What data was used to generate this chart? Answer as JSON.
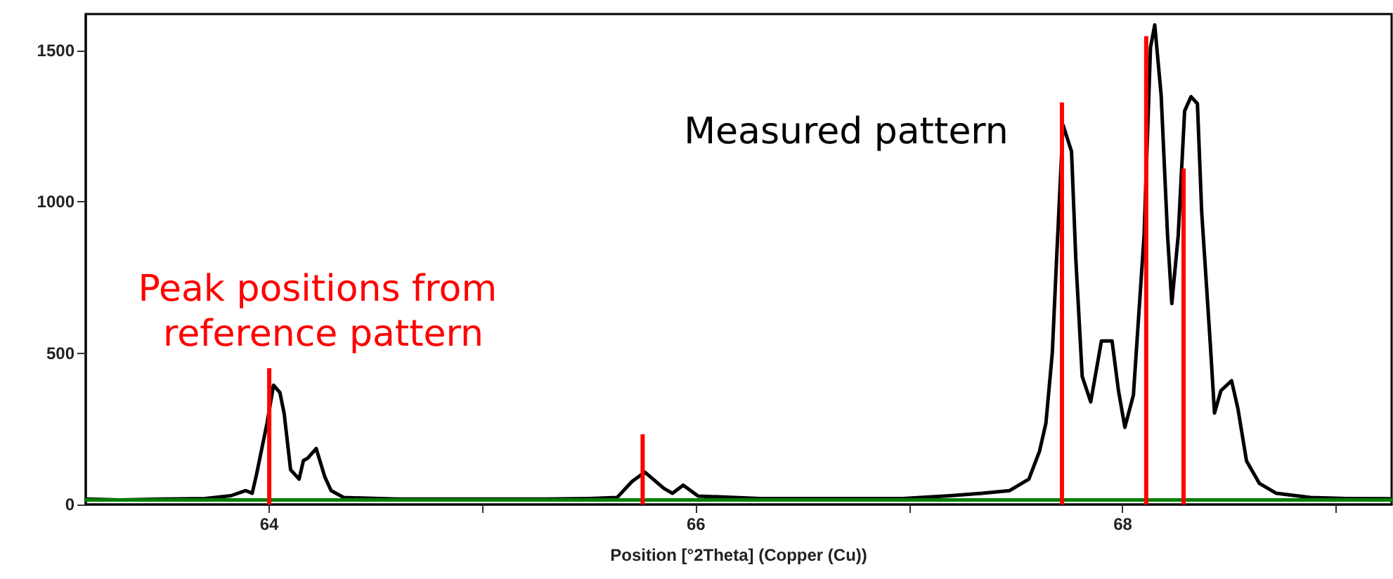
{
  "chart_data": {
    "type": "line",
    "xlabel": "Position [°2Theta] (Copper (Cu))",
    "xlim": [
      63.14,
      69.26
    ],
    "ylim": [
      0,
      1620
    ],
    "xticks": [
      64,
      {
        "value": 65,
        "label": null
      },
      66,
      {
        "value": 67,
        "label": null
      },
      68,
      {
        "value": 69,
        "label": null
      }
    ],
    "yticks": [
      0,
      500,
      1000,
      1500
    ],
    "grid": false,
    "legend": false,
    "marker": "none",
    "line_style": "solid",
    "series": [
      {
        "name": "Measured pattern",
        "color": "#000000",
        "x": [
          63.15,
          63.3,
          63.5,
          63.7,
          63.82,
          63.89,
          63.92,
          63.94,
          63.99,
          64.02,
          64.05,
          64.07,
          64.1,
          64.14,
          64.16,
          64.18,
          64.22,
          64.26,
          64.29,
          64.35,
          64.6,
          65.0,
          65.3,
          65.5,
          65.63,
          65.7,
          65.76,
          65.85,
          65.89,
          65.94,
          66.01,
          66.3,
          66.6,
          66.97,
          67.19,
          67.34,
          67.47,
          67.56,
          67.61,
          67.64,
          67.67,
          67.69,
          67.72,
          67.76,
          67.78,
          67.81,
          67.85,
          67.9,
          67.95,
          67.98,
          68.01,
          68.05,
          68.1,
          68.13,
          68.15,
          68.18,
          68.21,
          68.23,
          68.26,
          68.29,
          68.32,
          68.35,
          68.37,
          68.41,
          68.43,
          68.46,
          68.51,
          68.54,
          68.58,
          68.64,
          68.72,
          68.88,
          69.05,
          69.25
        ],
        "values": [
          18,
          15,
          18,
          20,
          29,
          46,
          37,
          98,
          270,
          394,
          370,
          300,
          115,
          84,
          145,
          153,
          185,
          92,
          46,
          23,
          18,
          18,
          18,
          20,
          23,
          76,
          107,
          53,
          37,
          64,
          28,
          20,
          20,
          20,
          29,
          37,
          46,
          84,
          176,
          269,
          502,
          812,
          1254,
          1166,
          812,
          423,
          339,
          540,
          540,
          376,
          255,
          362,
          889,
          1509,
          1584,
          1352,
          889,
          664,
          889,
          1300,
          1347,
          1324,
          966,
          534,
          302,
          376,
          409,
          316,
          144,
          70,
          37,
          23,
          20,
          19
        ]
      },
      {
        "name": "Peak positions from reference pattern",
        "type": "bar",
        "color": "#ff0000",
        "x": [
          64.0,
          65.75,
          67.715,
          68.11,
          68.285
        ],
        "values": [
          450,
          232,
          1328,
          1547,
          1110
        ]
      },
      {
        "type": "line",
        "color": "#008000",
        "x": [
          63.14,
          69.26
        ],
        "values": [
          15,
          15
        ]
      }
    ]
  }
}
